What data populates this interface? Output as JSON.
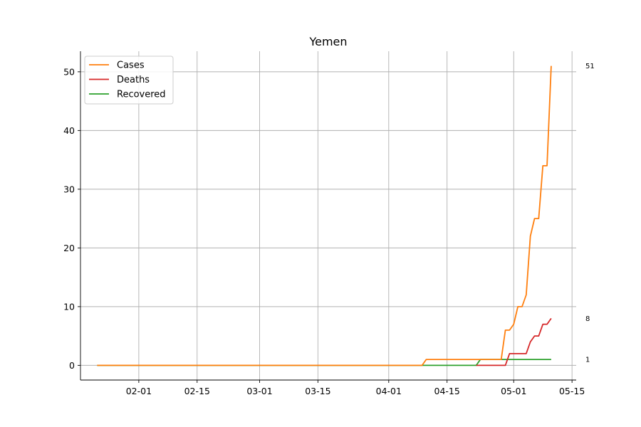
{
  "chart_data": {
    "type": "line",
    "title": "Yemen",
    "xlabel": "",
    "ylabel": "",
    "x_start_date": "2020-01-22",
    "xlim": [
      "2020-01-18",
      "2020-05-16"
    ],
    "ylim": [
      -2.5,
      53.5
    ],
    "x_ticks": [
      "02-01",
      "02-15",
      "03-01",
      "03-15",
      "04-01",
      "04-15",
      "05-01",
      "05-15"
    ],
    "y_ticks": [
      0,
      10,
      20,
      30,
      40,
      50
    ],
    "grid": true,
    "legend_position": "top-left",
    "colors": {
      "Cases": "#ff7f0e",
      "Deaths": "#d62728",
      "Recovered": "#2ca02c"
    },
    "series": [
      {
        "name": "Cases",
        "points": [
          [
            "2020-01-22",
            0
          ],
          [
            "2020-04-09",
            0
          ],
          [
            "2020-04-10",
            1
          ],
          [
            "2020-04-28",
            1
          ],
          [
            "2020-04-29",
            6
          ],
          [
            "2020-04-30",
            6
          ],
          [
            "2020-05-01",
            7
          ],
          [
            "2020-05-02",
            10
          ],
          [
            "2020-05-03",
            10
          ],
          [
            "2020-05-04",
            12
          ],
          [
            "2020-05-05",
            22
          ],
          [
            "2020-05-06",
            25
          ],
          [
            "2020-05-07",
            25
          ],
          [
            "2020-05-08",
            34
          ],
          [
            "2020-05-09",
            34
          ],
          [
            "2020-05-10",
            51
          ]
        ]
      },
      {
        "name": "Deaths",
        "points": [
          [
            "2020-04-22",
            0
          ],
          [
            "2020-04-29",
            0
          ],
          [
            "2020-04-30",
            2
          ],
          [
            "2020-05-04",
            2
          ],
          [
            "2020-05-05",
            4
          ],
          [
            "2020-05-06",
            5
          ],
          [
            "2020-05-07",
            5
          ],
          [
            "2020-05-08",
            7
          ],
          [
            "2020-05-09",
            7
          ],
          [
            "2020-05-10",
            8
          ]
        ]
      },
      {
        "name": "Recovered",
        "points": [
          [
            "2020-01-22",
            0
          ],
          [
            "2020-04-22",
            0
          ],
          [
            "2020-04-23",
            1
          ],
          [
            "2020-05-10",
            1
          ]
        ]
      }
    ],
    "end_labels": [
      {
        "series": "Cases",
        "value": 51,
        "text": "51"
      },
      {
        "series": "Deaths",
        "value": 8,
        "text": "8"
      },
      {
        "series": "Recovered",
        "value": 1,
        "text": "1"
      }
    ]
  }
}
